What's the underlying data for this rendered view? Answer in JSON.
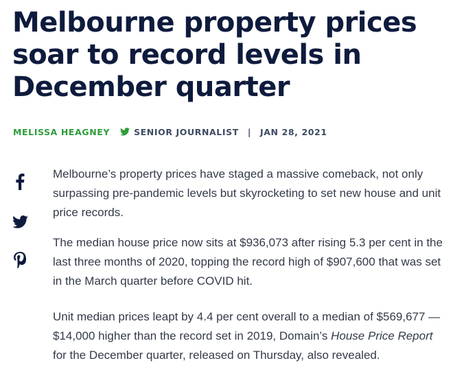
{
  "article": {
    "headline": "Melbourne property prices soar to record levels in December quarter",
    "byline": {
      "author": "Melissa Heagney",
      "twitter_icon": "twitter-bird-icon",
      "role": "Senior Journalist",
      "separator": "|",
      "date": "Jan 28, 2021"
    },
    "share": {
      "facebook_icon": "facebook-icon",
      "twitter_icon": "twitter-icon",
      "pinterest_icon": "pinterest-icon"
    },
    "paragraphs": {
      "p1": "Melbourne’s property prices have staged a massive comeback, not only surpassing pre-pandemic levels but skyrocketing to set new house and unit price records.",
      "p2": "The median house price now sits at $936,073 after rising 5.3 per cent in the last three months of 2020, topping the record high of $907,600 that was set in the March quarter before COVID hit.",
      "p3_before": "Unit median prices leapt by 4.4 per cent overall to a median of $569,677 — $14,000 higher than the record set in 2019, Domain’s ",
      "p3_italic": "House Price Report",
      "p3_after": " for the December quarter, released on Thursday, also revealed."
    },
    "colors": {
      "headline": "#0e1b3d",
      "author": "#2e9c3a",
      "meta": "#3d4a62",
      "body": "#333a48"
    }
  }
}
